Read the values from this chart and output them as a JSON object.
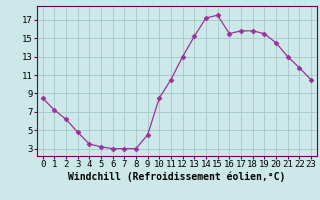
{
  "x": [
    0,
    1,
    2,
    3,
    4,
    5,
    6,
    7,
    8,
    9,
    10,
    11,
    12,
    13,
    14,
    15,
    16,
    17,
    18,
    19,
    20,
    21,
    22,
    23
  ],
  "y": [
    8.5,
    7.2,
    6.2,
    4.8,
    3.5,
    3.2,
    3.0,
    3.0,
    3.0,
    4.5,
    8.5,
    10.5,
    13.0,
    15.2,
    17.2,
    17.5,
    15.5,
    15.8,
    15.8,
    15.5,
    14.5,
    13.0,
    11.8,
    10.5
  ],
  "line_color": "#993399",
  "marker": "D",
  "marker_size": 2.5,
  "bg_color": "#cce8e8",
  "grid_color": "#aacccc",
  "xlabel": "Windchill (Refroidissement éolien,°C)",
  "ylabel_ticks": [
    3,
    5,
    7,
    9,
    11,
    13,
    15,
    17
  ],
  "xlim": [
    -0.5,
    23.5
  ],
  "ylim": [
    2.2,
    18.5
  ],
  "xticks": [
    0,
    1,
    2,
    3,
    4,
    5,
    6,
    7,
    8,
    9,
    10,
    11,
    12,
    13,
    14,
    15,
    16,
    17,
    18,
    19,
    20,
    21,
    22,
    23
  ],
  "xlabel_fontsize": 7.0,
  "tick_fontsize": 6.5,
  "axis_color": "#660066",
  "spine_color": "#660066"
}
